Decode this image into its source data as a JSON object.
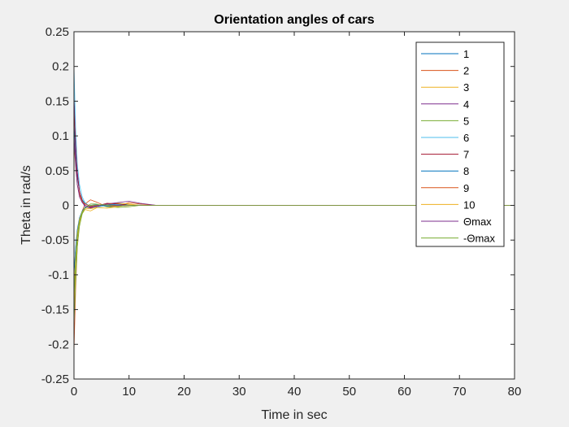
{
  "chart_data": {
    "type": "line",
    "title": "Orientation angles of cars",
    "xlabel": "Time in sec",
    "ylabel": "Theta in rad/s",
    "xlim": [
      0,
      80
    ],
    "ylim": [
      -0.25,
      0.25
    ],
    "x_ticks": [
      0,
      10,
      20,
      30,
      40,
      50,
      60,
      70,
      80
    ],
    "y_ticks": [
      -0.25,
      -0.2,
      -0.15,
      -0.1,
      -0.05,
      0,
      0.05,
      0.1,
      0.15,
      0.2,
      0.25
    ],
    "y_tick_labels": [
      "-0.25",
      "-0.2",
      "-0.15",
      "-0.1",
      "-0.05",
      "0",
      "0.05",
      "0.1",
      "0.15",
      "0.2",
      "0.25"
    ],
    "grid": false,
    "legend_position": "top-right",
    "series": [
      {
        "name": "1",
        "color": "#0072bd",
        "points": [
          [
            0,
            0.12
          ],
          [
            0.3,
            0.07
          ],
          [
            0.6,
            0.04
          ],
          [
            1,
            0.02
          ],
          [
            1.5,
            0.008
          ],
          [
            2,
            0.003
          ],
          [
            3,
            -0.002
          ],
          [
            4,
            -0.002
          ],
          [
            6,
            0.001
          ],
          [
            8,
            0.002
          ],
          [
            10,
            0.001
          ],
          [
            13,
            0
          ],
          [
            18,
            0
          ],
          [
            80,
            0
          ]
        ]
      },
      {
        "name": "2",
        "color": "#d95319",
        "points": [
          [
            0,
            -0.21
          ],
          [
            0.3,
            -0.12
          ],
          [
            0.6,
            -0.06
          ],
          [
            1,
            -0.025
          ],
          [
            1.5,
            -0.008
          ],
          [
            2,
            0.002
          ],
          [
            3,
            0.008
          ],
          [
            4,
            0.005
          ],
          [
            6,
            -0.002
          ],
          [
            8,
            -0.001
          ],
          [
            10,
            0.004
          ],
          [
            12,
            0.002
          ],
          [
            15,
            0
          ],
          [
            80,
            0
          ]
        ]
      },
      {
        "name": "3",
        "color": "#edb120",
        "points": [
          [
            0,
            -0.15
          ],
          [
            0.3,
            -0.09
          ],
          [
            0.6,
            -0.05
          ],
          [
            1,
            -0.025
          ],
          [
            1.5,
            -0.012
          ],
          [
            2,
            -0.006
          ],
          [
            3,
            -0.008
          ],
          [
            4,
            -0.004
          ],
          [
            6,
            0.002
          ],
          [
            8,
            0.003
          ],
          [
            10,
            0.002
          ],
          [
            12,
            0
          ],
          [
            80,
            0
          ]
        ]
      },
      {
        "name": "4",
        "color": "#7e2f8e",
        "points": [
          [
            0,
            0.16
          ],
          [
            0.3,
            0.1
          ],
          [
            0.6,
            0.05
          ],
          [
            1,
            0.02
          ],
          [
            1.5,
            0.005
          ],
          [
            2,
            -0.002
          ],
          [
            3,
            -0.004
          ],
          [
            4,
            -0.002
          ],
          [
            6,
            0.002
          ],
          [
            8,
            0.004
          ],
          [
            10,
            0.006
          ],
          [
            12,
            0.003
          ],
          [
            15,
            0
          ],
          [
            80,
            0
          ]
        ]
      },
      {
        "name": "5",
        "color": "#77ac30",
        "points": [
          [
            0,
            -0.17
          ],
          [
            0.3,
            -0.11
          ],
          [
            0.6,
            -0.06
          ],
          [
            1,
            -0.03
          ],
          [
            1.5,
            -0.012
          ],
          [
            2,
            -0.004
          ],
          [
            3,
            0.002
          ],
          [
            4,
            0.002
          ],
          [
            6,
            -0.002
          ],
          [
            8,
            -0.003
          ],
          [
            10,
            -0.002
          ],
          [
            12,
            0
          ],
          [
            80,
            0
          ]
        ]
      },
      {
        "name": "6",
        "color": "#4dbeee",
        "points": [
          [
            0,
            0.2
          ],
          [
            0.3,
            0.11
          ],
          [
            0.6,
            0.06
          ],
          [
            1,
            0.03
          ],
          [
            1.5,
            0.012
          ],
          [
            2,
            0.004
          ],
          [
            3,
            -0.002
          ],
          [
            4,
            -0.003
          ],
          [
            6,
            0
          ],
          [
            8,
            0.001
          ],
          [
            12,
            0
          ],
          [
            80,
            0
          ]
        ]
      },
      {
        "name": "7",
        "color": "#a2142f",
        "points": [
          [
            0,
            0.14
          ],
          [
            0.3,
            0.085
          ],
          [
            0.6,
            0.045
          ],
          [
            1,
            0.02
          ],
          [
            1.5,
            0.007
          ],
          [
            2,
            0
          ],
          [
            3,
            -0.003
          ],
          [
            4,
            -0.001
          ],
          [
            6,
            0.003
          ],
          [
            8,
            0.002
          ],
          [
            10,
            0
          ],
          [
            80,
            0
          ]
        ]
      },
      {
        "name": "8",
        "color": "#0072bd",
        "points": [
          [
            0,
            -0.1
          ],
          [
            0.3,
            -0.06
          ],
          [
            0.6,
            -0.035
          ],
          [
            1,
            -0.018
          ],
          [
            1.5,
            -0.008
          ],
          [
            2,
            -0.003
          ],
          [
            3,
            0
          ],
          [
            4,
            0.001
          ],
          [
            6,
            -0.001
          ],
          [
            8,
            0
          ],
          [
            80,
            0
          ]
        ]
      },
      {
        "name": "9",
        "color": "#d95319",
        "points": [
          [
            0,
            0.09
          ],
          [
            0.3,
            0.055
          ],
          [
            0.6,
            0.03
          ],
          [
            1,
            0.015
          ],
          [
            1.5,
            0.006
          ],
          [
            2,
            0.002
          ],
          [
            3,
            -0.001
          ],
          [
            5,
            0.001
          ],
          [
            8,
            -0.001
          ],
          [
            11,
            0
          ],
          [
            80,
            0
          ]
        ]
      },
      {
        "name": "10",
        "color": "#edb120",
        "points": [
          [
            0,
            -0.12
          ],
          [
            0.3,
            -0.075
          ],
          [
            0.6,
            -0.04
          ],
          [
            1,
            -0.02
          ],
          [
            1.5,
            -0.009
          ],
          [
            2,
            -0.004
          ],
          [
            3,
            -0.005
          ],
          [
            4,
            -0.003
          ],
          [
            6,
            -0.004
          ],
          [
            8,
            -0.002
          ],
          [
            10,
            0.001
          ],
          [
            12,
            0
          ],
          [
            80,
            0
          ]
        ]
      },
      {
        "name": "Θmax",
        "color": "#7e2f8e",
        "points": [
          [
            0,
            0.1
          ],
          [
            0.3,
            0.06
          ],
          [
            0.6,
            0.03
          ],
          [
            1,
            0.012
          ],
          [
            1.5,
            0.004
          ],
          [
            2,
            0
          ],
          [
            3,
            -0.002
          ],
          [
            5,
            0.001
          ],
          [
            8,
            0
          ],
          [
            80,
            0
          ]
        ]
      },
      {
        "name": "-Θmax",
        "color": "#77ac30",
        "points": [
          [
            0,
            -0.13
          ],
          [
            0.3,
            -0.08
          ],
          [
            0.6,
            -0.045
          ],
          [
            1,
            -0.022
          ],
          [
            1.5,
            -0.01
          ],
          [
            2,
            -0.004
          ],
          [
            3,
            0
          ],
          [
            5,
            0.001
          ],
          [
            8,
            -0.001
          ],
          [
            10,
            0
          ],
          [
            80,
            0
          ]
        ]
      }
    ]
  }
}
